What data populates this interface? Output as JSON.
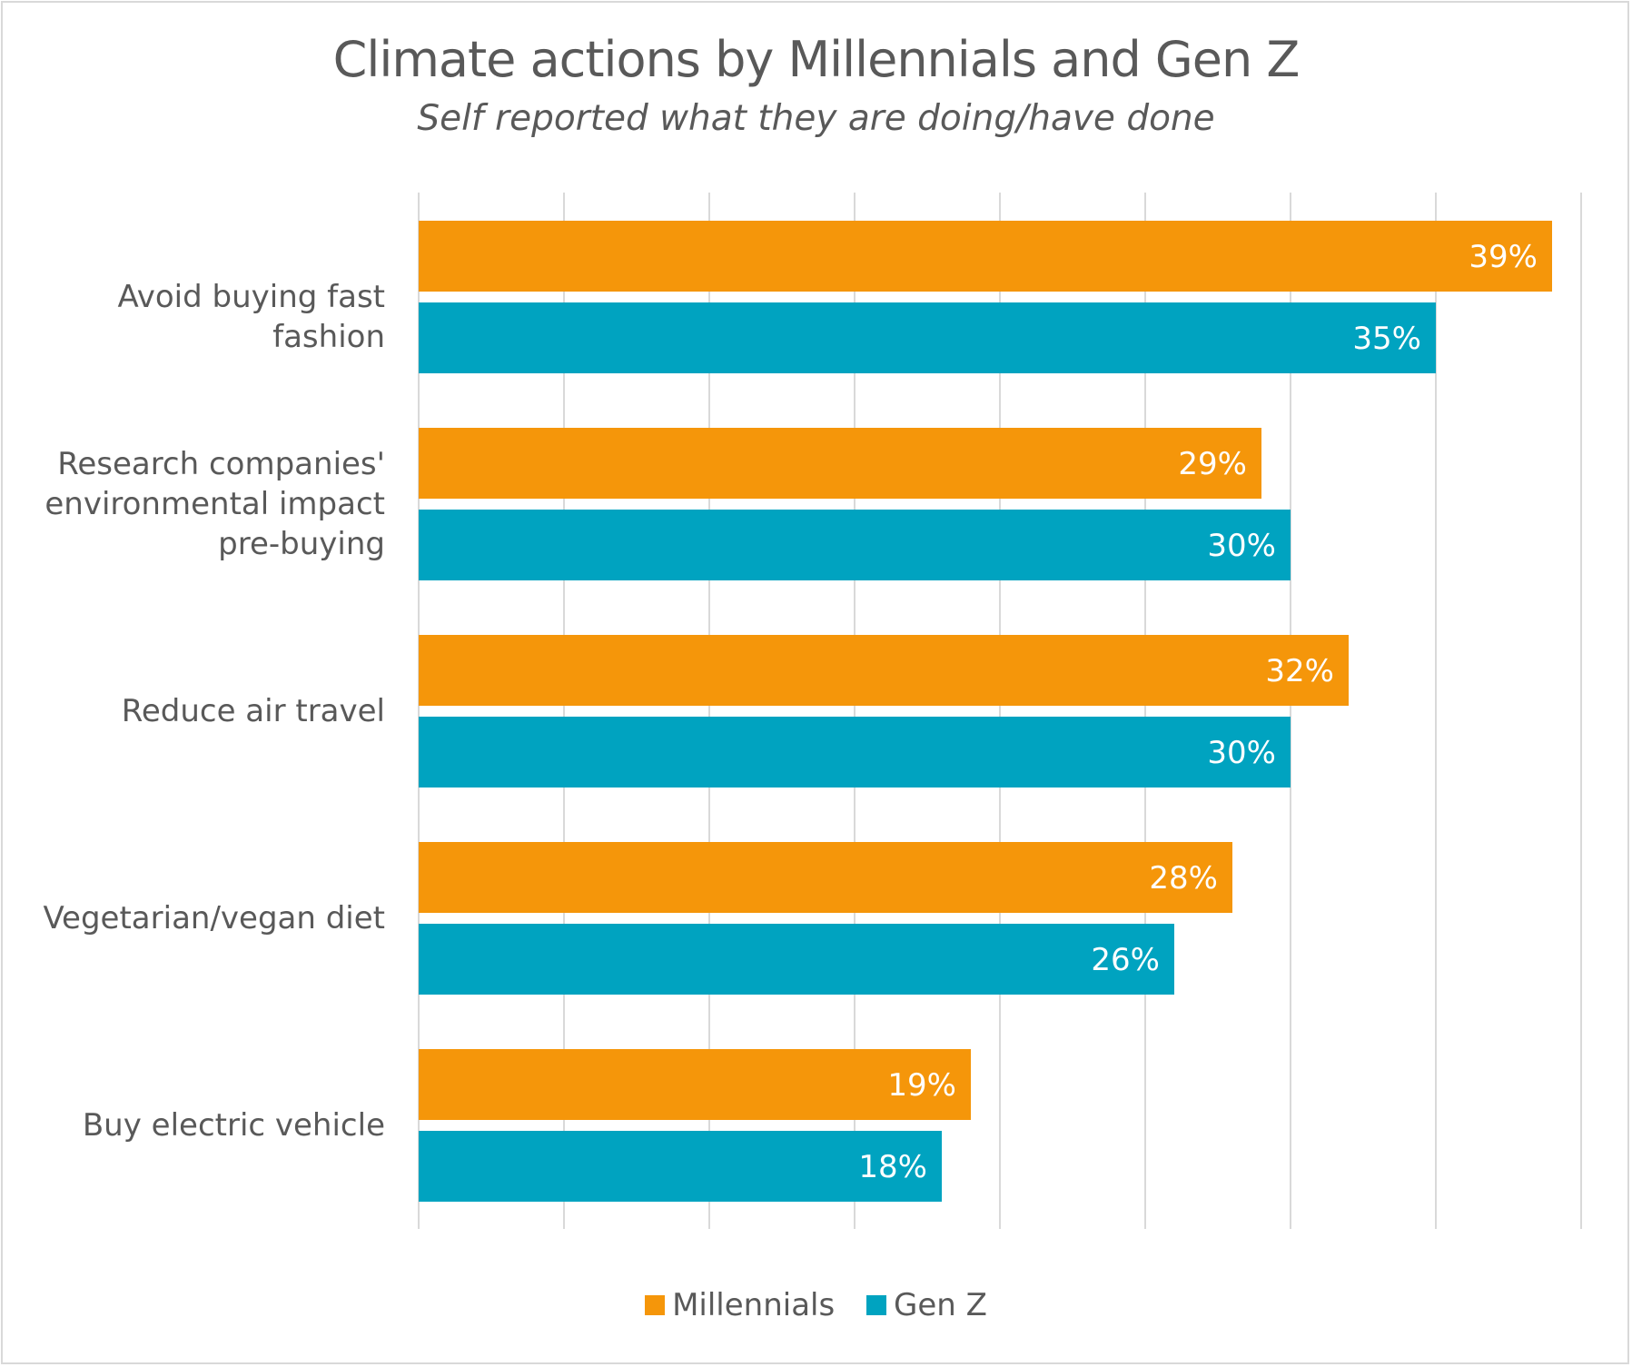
{
  "chart_data": {
    "type": "bar",
    "orientation": "horizontal",
    "title": "Climate actions by Millennials and Gen Z",
    "subtitle": "Self reported what they are doing/have done",
    "categories": [
      "Avoid buying fast fashion",
      "Research companies' environmental impact pre-buying",
      "Reduce air travel",
      "Vegetarian/vegan diet",
      "Buy electric vehicle"
    ],
    "category_label_lines": [
      [
        "Avoid buying fast fashion"
      ],
      [
        "Research companies'",
        "environmental impact",
        "pre-buying"
      ],
      [
        "Reduce air travel"
      ],
      [
        "Vegetarian/vegan diet"
      ],
      [
        "Buy electric vehicle"
      ]
    ],
    "series": [
      {
        "name": "Millennials",
        "color": "#f5960a",
        "values": [
          39,
          29,
          32,
          28,
          19
        ],
        "labels": [
          "39%",
          "29%",
          "32%",
          "28%",
          "19%"
        ]
      },
      {
        "name": "Gen Z",
        "color": "#00a3c0",
        "values": [
          35,
          30,
          30,
          26,
          18
        ],
        "labels": [
          "35%",
          "30%",
          "30%",
          "26%",
          "18%"
        ]
      }
    ],
    "xlim": [
      0,
      40
    ],
    "gridlines": true,
    "gridline_step": 5,
    "legend_position": "bottom"
  }
}
